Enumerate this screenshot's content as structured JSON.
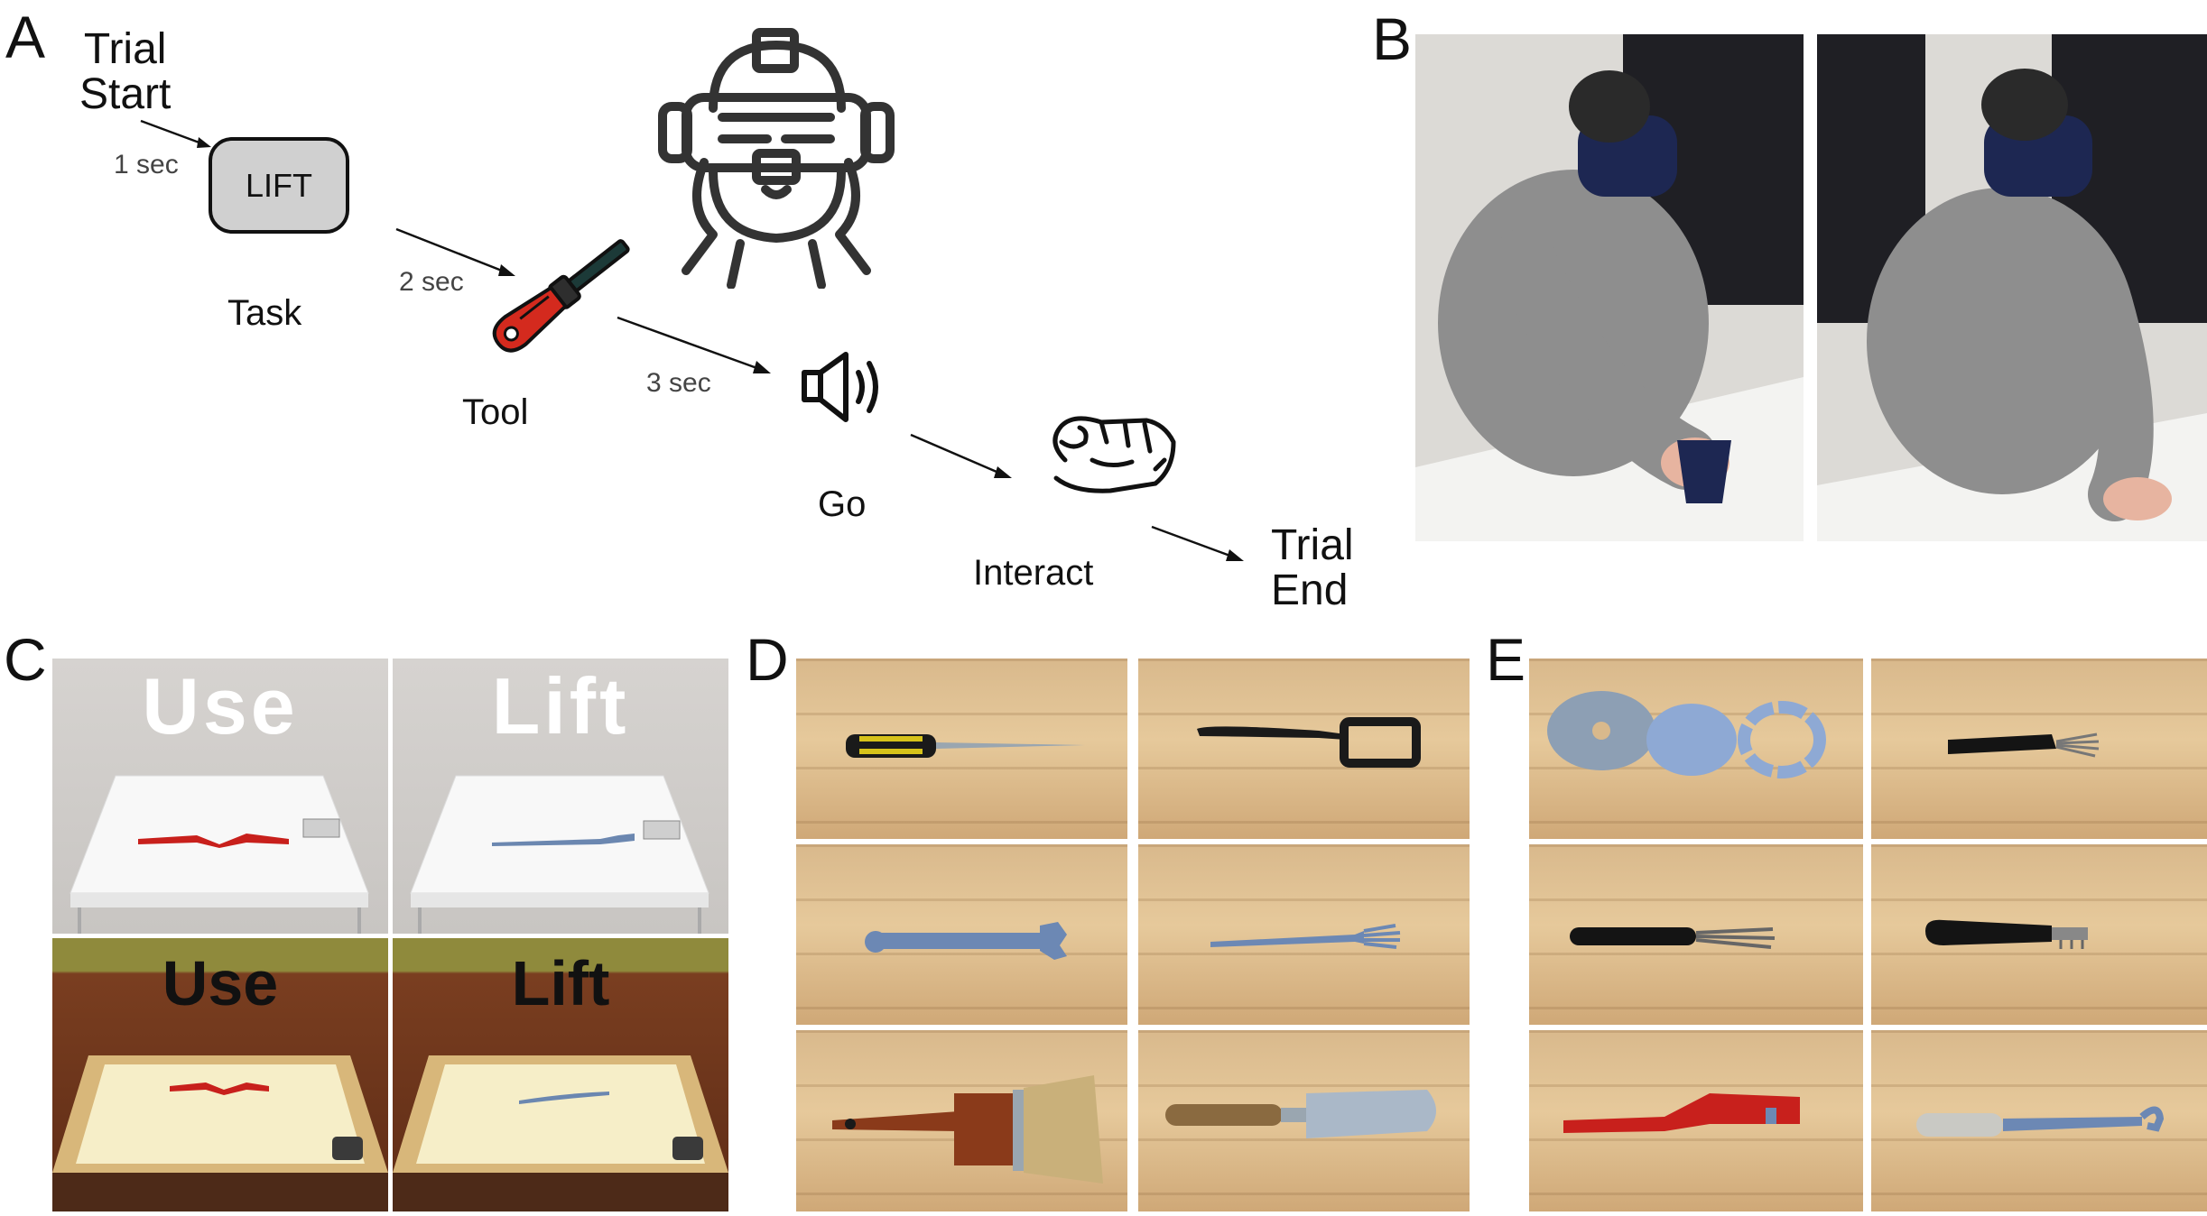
{
  "panels": {
    "A": "A",
    "B": "B",
    "C": "C",
    "D": "D",
    "E": "E"
  },
  "timeline": {
    "trial_start": "Trial\nStart",
    "t1": "1 sec",
    "lift_box": "LIFT",
    "task": "Task",
    "t2": "2 sec",
    "tool": "Tool",
    "t3": "3 sec",
    "go": "Go",
    "interact": "Interact",
    "trial_end": "Trial\nEnd"
  },
  "panel_c": {
    "top_left_word": "Use",
    "top_right_word": "Lift",
    "bottom_left_word": "Use",
    "bottom_right_word": "Lift"
  },
  "colors": {
    "screwdriver_handle": "#d42a1e",
    "go_box_fill": "#d0d0d0",
    "c_bottom_sky": "#8f8a3c",
    "wood_light": "#e6c99b"
  },
  "icons": {
    "vr_headset": "vr-headset-person-icon",
    "tool": "screwdriver-icon",
    "go": "speaker-icon",
    "interact": "grasping-hand-icon"
  }
}
